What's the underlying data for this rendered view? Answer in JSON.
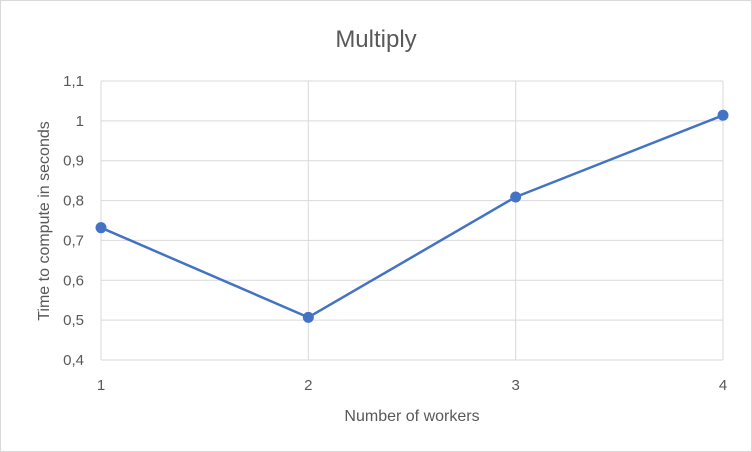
{
  "chart_data": {
    "type": "line",
    "title": "Multiply",
    "xlabel": "Number of workers",
    "ylabel": "Time to compute in seconds",
    "x": [
      1,
      2,
      3,
      4
    ],
    "x_tick_labels": [
      "1",
      "2",
      "3",
      "4"
    ],
    "y_tick_labels": [
      "0,4",
      "0,5",
      "0,6",
      "0,7",
      "0,8",
      "0,9",
      "1",
      "1,1"
    ],
    "series": [
      {
        "values": [
          0.732,
          0.507,
          0.809,
          1.014
        ]
      }
    ],
    "ylim": [
      0.4,
      1.1
    ],
    "y_ticks": [
      0.4,
      0.5,
      0.6,
      0.7,
      0.8,
      0.9,
      1.0,
      1.1
    ],
    "grid": {
      "horizontal": true,
      "vertical": true
    },
    "series_color": "#4472c4",
    "grid_color": "#d9d9d9",
    "text_color": "#595959"
  }
}
